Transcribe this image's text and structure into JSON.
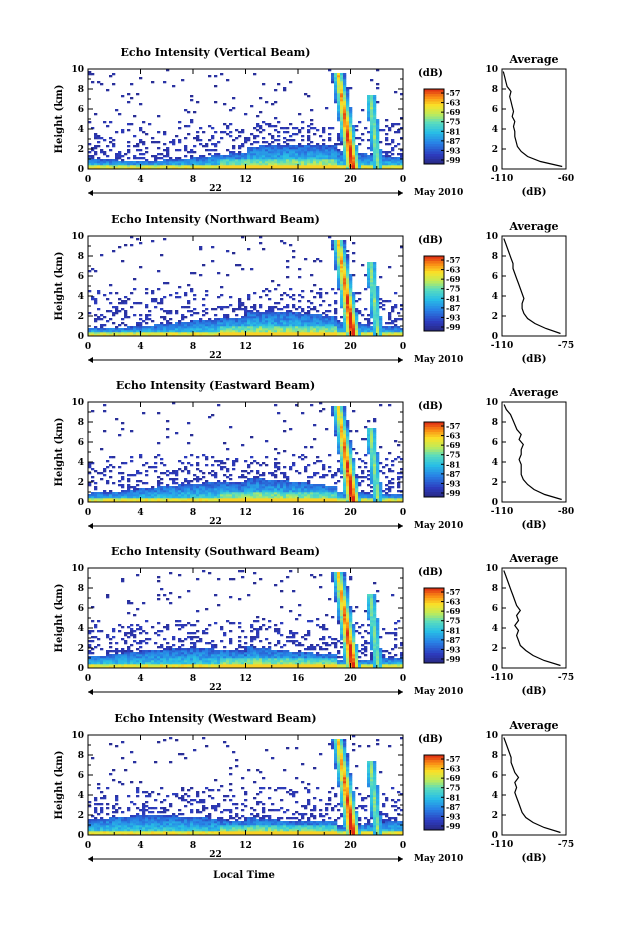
{
  "figure": {
    "date_label": "May 2010",
    "day_label": "22",
    "xlabel_bottom": "Local Time",
    "colorbar_unit": "(dB)"
  },
  "chart_data": [
    {
      "type": "heatmap",
      "title": "Echo Intensity (Vertical Beam)",
      "ylabel": "Height (km)",
      "xlim": [
        0,
        24
      ],
      "ylim": [
        0,
        10
      ],
      "xticks": [
        "0",
        "4",
        "8",
        "12",
        "16",
        "20",
        "0"
      ],
      "yticks": [
        "0",
        "2",
        "4",
        "6",
        "8",
        "10"
      ],
      "colorbar_ticks": [
        "-57",
        "-63",
        "-69",
        "-75",
        "-81",
        "-87",
        "-93",
        "-99"
      ],
      "colorbar_range": [
        -99,
        -57
      ],
      "profile": {
        "title": "Average",
        "xlabel": "(dB)",
        "xticks": [
          "-110",
          "-60"
        ],
        "xlim": [
          -110,
          -60
        ],
        "heights": [
          0,
          0.5,
          1,
          1.5,
          2,
          2.5,
          3,
          3.5,
          4,
          4.5,
          5,
          5.5,
          6,
          6.5,
          7,
          7.5,
          8,
          8.5,
          9,
          9.5
        ],
        "values": [
          -63,
          -80,
          -90,
          -95,
          -98,
          -99,
          -100,
          -100,
          -101,
          -100,
          -102,
          -101,
          -102,
          -103,
          -104,
          -103,
          -106,
          -107,
          -108,
          -109
        ]
      }
    },
    {
      "type": "heatmap",
      "title": "Echo Intensity (Northward Beam)",
      "ylabel": "Height (km)",
      "xlim": [
        0,
        24
      ],
      "ylim": [
        0,
        10
      ],
      "xticks": [
        "0",
        "4",
        "8",
        "12",
        "16",
        "20",
        "0"
      ],
      "yticks": [
        "0",
        "2",
        "4",
        "6",
        "8",
        "10"
      ],
      "colorbar_ticks": [
        "-57",
        "-63",
        "-69",
        "-75",
        "-81",
        "-87",
        "-93",
        "-99"
      ],
      "colorbar_range": [
        -99,
        -57
      ],
      "profile": {
        "title": "Average",
        "xlabel": "(dB)",
        "xticks": [
          "-110",
          "-75"
        ],
        "xlim": [
          -110,
          -75
        ],
        "heights": [
          0,
          0.5,
          1,
          1.5,
          2,
          2.5,
          3,
          3.5,
          4,
          4.5,
          5,
          5.5,
          6,
          6.5,
          7,
          7.5,
          8,
          8.5,
          9,
          9.5
        ],
        "values": [
          -78,
          -86,
          -92,
          -96,
          -98,
          -99,
          -99,
          -98,
          -99,
          -100,
          -101,
          -102,
          -103,
          -104,
          -104,
          -105,
          -106,
          -107,
          -108,
          -109
        ]
      }
    },
    {
      "type": "heatmap",
      "title": "Echo Intensity (Eastward Beam)",
      "ylabel": "Height (km)",
      "xlim": [
        0,
        24
      ],
      "ylim": [
        0,
        10
      ],
      "xticks": [
        "0",
        "4",
        "8",
        "12",
        "16",
        "20",
        "0"
      ],
      "yticks": [
        "0",
        "2",
        "4",
        "6",
        "8",
        "10"
      ],
      "colorbar_ticks": [
        "-57",
        "-63",
        "-69",
        "-75",
        "-81",
        "-87",
        "-93",
        "-99"
      ],
      "colorbar_range": [
        -99,
        -57
      ],
      "profile": {
        "title": "Average",
        "xlabel": "(dB)",
        "xticks": [
          "-110",
          "-80"
        ],
        "xlim": [
          -110,
          -80
        ],
        "heights": [
          0,
          0.5,
          1,
          1.5,
          2,
          2.5,
          3,
          3.5,
          4,
          4.5,
          5,
          5.5,
          6,
          6.5,
          7,
          7.5,
          8,
          8.5,
          9,
          9.5
        ],
        "values": [
          -82,
          -90,
          -95,
          -98,
          -100,
          -101,
          -101,
          -101,
          -102,
          -101,
          -101,
          -100,
          -102,
          -101,
          -103,
          -104,
          -105,
          -106,
          -108,
          -109
        ]
      }
    },
    {
      "type": "heatmap",
      "title": "Echo Intensity (Southward Beam)",
      "ylabel": "Height (km)",
      "xlim": [
        0,
        24
      ],
      "ylim": [
        0,
        10
      ],
      "xticks": [
        "0",
        "4",
        "8",
        "12",
        "16",
        "20",
        "0"
      ],
      "yticks": [
        "0",
        "2",
        "4",
        "6",
        "8",
        "10"
      ],
      "colorbar_ticks": [
        "-57",
        "-63",
        "-69",
        "-75",
        "-81",
        "-87",
        "-93",
        "-99"
      ],
      "colorbar_range": [
        -99,
        -57
      ],
      "profile": {
        "title": "Average",
        "xlabel": "(dB)",
        "xticks": [
          "-110",
          "-75"
        ],
        "xlim": [
          -110,
          -75
        ],
        "heights": [
          0,
          0.5,
          1,
          1.5,
          2,
          2.5,
          3,
          3.5,
          4,
          4.5,
          5,
          5.5,
          6,
          6.5,
          7,
          7.5,
          8,
          8.5,
          9,
          9.5
        ],
        "values": [
          -78,
          -87,
          -93,
          -97,
          -100,
          -101,
          -102,
          -101,
          -103,
          -101,
          -102,
          -100,
          -102,
          -103,
          -104,
          -105,
          -106,
          -107,
          -108,
          -109
        ]
      }
    },
    {
      "type": "heatmap",
      "title": "Echo Intensity (Westward Beam)",
      "ylabel": "Height (km)",
      "xlim": [
        0,
        24
      ],
      "ylim": [
        0,
        10
      ],
      "xticks": [
        "0",
        "4",
        "8",
        "12",
        "16",
        "20",
        "0"
      ],
      "yticks": [
        "0",
        "2",
        "4",
        "6",
        "8",
        "10"
      ],
      "colorbar_ticks": [
        "-57",
        "-63",
        "-69",
        "-75",
        "-81",
        "-87",
        "-93",
        "-99"
      ],
      "colorbar_range": [
        -99,
        -57
      ],
      "profile": {
        "title": "Average",
        "xlabel": "(dB)",
        "xticks": [
          "-110",
          "-75"
        ],
        "xlim": [
          -110,
          -75
        ],
        "heights": [
          0,
          0.5,
          1,
          1.5,
          2,
          2.5,
          3,
          3.5,
          4,
          4.5,
          5,
          5.5,
          6,
          6.5,
          7,
          7.5,
          8,
          8.5,
          9,
          9.5
        ],
        "values": [
          -78,
          -87,
          -93,
          -97,
          -99,
          -100,
          -101,
          -102,
          -103,
          -102,
          -103,
          -101,
          -103,
          -104,
          -105,
          -105,
          -106,
          -107,
          -108,
          -109
        ]
      }
    }
  ]
}
